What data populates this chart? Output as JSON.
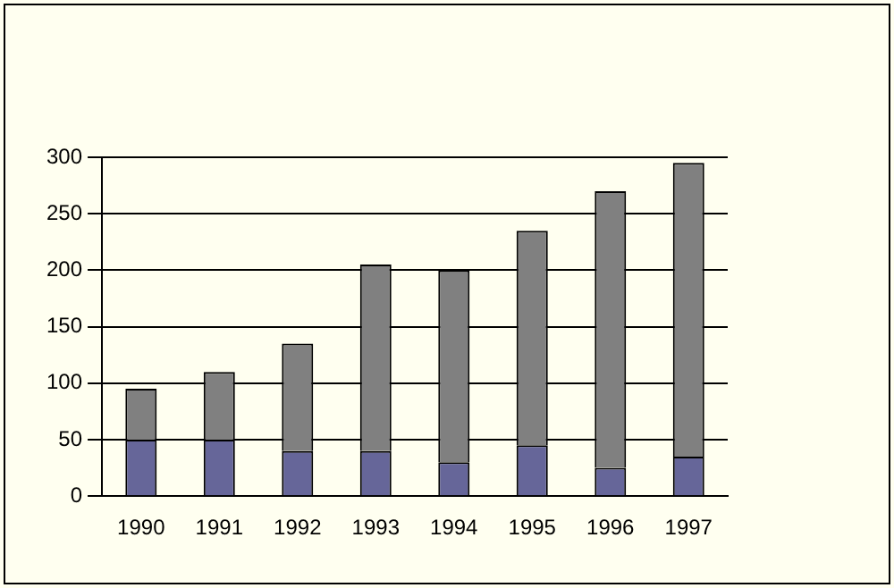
{
  "chart_data": {
    "type": "bar",
    "stacked": true,
    "categories": [
      "1990",
      "1991",
      "1992",
      "1993",
      "1994",
      "1995",
      "1996",
      "1997"
    ],
    "series": [
      {
        "color": "#666699",
        "values": [
          50,
          50,
          40,
          40,
          30,
          45,
          25,
          35
        ]
      },
      {
        "color": "#808080",
        "values": [
          45,
          60,
          95,
          165,
          170,
          190,
          245,
          260
        ]
      }
    ],
    "ylim": [
      0,
      300
    ],
    "yticks": [
      0,
      50,
      100,
      150,
      200,
      250,
      300
    ],
    "grid": "y",
    "legend": false
  }
}
